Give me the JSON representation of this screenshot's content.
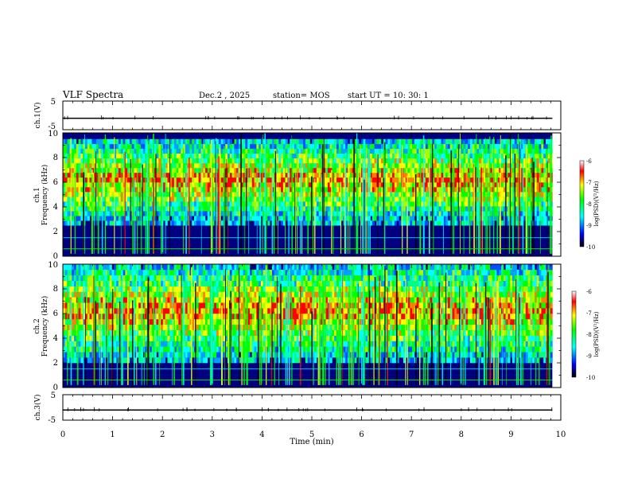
{
  "header": {
    "title": "VLF Spectra",
    "date": "Dec.2 , 2025",
    "station": "station= MOS",
    "start_ut": "start  UT =   10: 30: 1"
  },
  "panels": {
    "ch1_wave": {
      "ylabel": "ch.1(V)",
      "ticks": [
        "5",
        "-5"
      ]
    },
    "ch1_spec": {
      "ylabel_line1": "ch.1",
      "ylabel_line2": "Frequency (kHz)",
      "ticks": [
        "0",
        "2",
        "4",
        "6",
        "8",
        "10"
      ]
    },
    "ch2_spec": {
      "ylabel_line1": "ch.2",
      "ylabel_line2": "Frequency (kHz)",
      "ticks": [
        "0",
        "2",
        "4",
        "6",
        "8",
        "10"
      ]
    },
    "ch3_wave": {
      "ylabel": "ch.3(V)",
      "ticks": [
        "5",
        "-5"
      ]
    }
  },
  "colorbars": [
    {
      "label": "log(PSD)(V²/Hz)",
      "ticks": [
        "-6",
        "-7",
        "-8",
        "-9",
        "-10"
      ]
    },
    {
      "label": "log(PSD)(V²/Hz)",
      "ticks": [
        "-6",
        "-7",
        "-8",
        "-9",
        "-10"
      ]
    }
  ],
  "xaxis": {
    "label": "Time  (min)",
    "ticks": [
      "0",
      "1",
      "2",
      "3",
      "4",
      "5",
      "6",
      "7",
      "8",
      "9",
      "10"
    ]
  },
  "colors": {
    "background": "#000080",
    "colormap": [
      "#000000",
      "#0000ff",
      "#00ffff",
      "#00ff00",
      "#ffff00",
      "#ff0000",
      "#ffffff"
    ]
  },
  "chart_data": [
    {
      "type": "line",
      "title": "",
      "xlabel": "Time  (min)",
      "ylabel": "ch.1(V)",
      "xlim": [
        0,
        10
      ],
      "ylim": [
        -5,
        5
      ],
      "y_level": -1.0
    },
    {
      "type": "heatmap",
      "xlabel": "Time  (min)",
      "ylabel": "Frequency (kHz)",
      "xlim": [
        0,
        9.83
      ],
      "ylim": [
        0,
        10
      ],
      "colorbar_range": [
        -10,
        -6
      ],
      "band_kHz": [
        2.5,
        9.5
      ],
      "seed": 7
    },
    {
      "type": "heatmap",
      "xlabel": "Time  (min)",
      "ylabel": "Frequency (kHz)",
      "xlim": [
        0,
        9.83
      ],
      "ylim": [
        0,
        10
      ],
      "colorbar_range": [
        -10,
        -6
      ],
      "band_kHz": [
        2.0,
        10.0
      ],
      "seed": 13
    },
    {
      "type": "line",
      "title": "",
      "xlabel": "Time  (min)",
      "ylabel": "ch.3(V)",
      "xlim": [
        0,
        10
      ],
      "ylim": [
        -5,
        5
      ],
      "y_level": -1.0
    }
  ]
}
